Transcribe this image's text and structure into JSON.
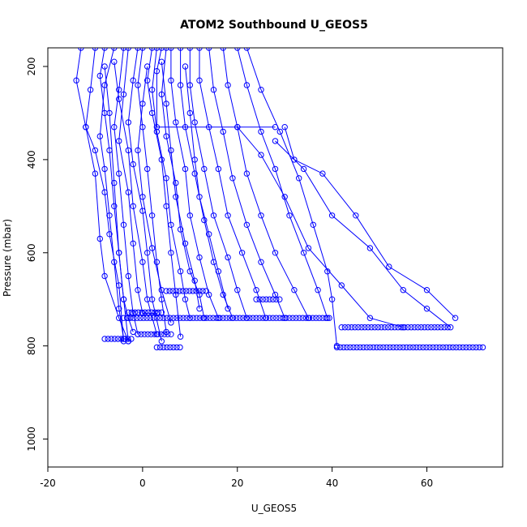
{
  "chart_data": {
    "type": "line",
    "title": "ATOM2 Southbound U_GEOS5",
    "xlabel": "U_GEOS5",
    "ylabel": "Pressure (mbar)",
    "xlim": [
      -20,
      76
    ],
    "ylim": [
      1060,
      160
    ],
    "y_reversed": true,
    "x_ticks": [
      -20,
      0,
      20,
      40,
      60
    ],
    "y_ticks": [
      200,
      400,
      600,
      800,
      1000
    ],
    "marker": "open-circle",
    "line_color": "#0000ff",
    "grid": false,
    "series": [
      {
        "values": [
          [
            -13,
            160
          ],
          [
            -14,
            230
          ],
          [
            -12,
            330
          ],
          [
            -10,
            430
          ],
          [
            -9,
            570
          ],
          [
            -8,
            650
          ],
          [
            -5,
            740
          ],
          [
            -3,
            790
          ]
        ]
      },
      {
        "values": [
          [
            -10,
            160
          ],
          [
            -11,
            250
          ],
          [
            -12,
            330
          ],
          [
            -10,
            380
          ],
          [
            -8,
            470
          ],
          [
            -7,
            560
          ],
          [
            -5,
            670
          ],
          [
            -4,
            790
          ]
        ]
      },
      {
        "values": [
          [
            -8,
            160
          ],
          [
            -9,
            220
          ],
          [
            -8,
            300
          ],
          [
            -7,
            380
          ],
          [
            -6,
            500
          ],
          [
            -5,
            600
          ],
          [
            -4,
            700
          ],
          [
            -3,
            790
          ]
        ]
      },
      {
        "values": [
          [
            -6,
            160
          ],
          [
            -8,
            240
          ],
          [
            -9,
            350
          ],
          [
            -8,
            420
          ],
          [
            -7,
            520
          ],
          [
            -6,
            620
          ],
          [
            -5,
            720
          ],
          [
            -4,
            785
          ]
        ]
      },
      {
        "values": [
          [
            -4,
            160
          ],
          [
            -5,
            250
          ],
          [
            -6,
            330
          ],
          [
            -5,
            430
          ],
          [
            -4,
            540
          ],
          [
            -3,
            650
          ],
          [
            -2,
            730
          ],
          [
            -1,
            775
          ]
        ]
      },
      {
        "values": [
          [
            -3,
            160
          ],
          [
            -4,
            260
          ],
          [
            -5,
            360
          ],
          [
            -3,
            470
          ],
          [
            -2,
            580
          ],
          [
            -1,
            680
          ],
          [
            0,
            730
          ],
          [
            3,
            730
          ]
        ]
      },
      {
        "values": [
          [
            -1,
            160
          ],
          [
            -2,
            230
          ],
          [
            -3,
            320
          ],
          [
            -2,
            410
          ],
          [
            0,
            510
          ],
          [
            1,
            600
          ],
          [
            2,
            700
          ],
          [
            4,
            790
          ]
        ]
      },
      {
        "values": [
          [
            0,
            160
          ],
          [
            -1,
            240
          ],
          [
            0,
            330
          ],
          [
            1,
            420
          ],
          [
            2,
            520
          ],
          [
            3,
            620
          ],
          [
            4,
            700
          ],
          [
            5,
            770
          ]
        ]
      },
      {
        "values": [
          [
            2,
            160
          ],
          [
            1,
            230
          ],
          [
            2,
            300
          ],
          [
            4,
            400
          ],
          [
            5,
            500
          ],
          [
            6,
            600
          ],
          [
            7,
            690
          ],
          [
            8,
            780
          ]
        ]
      },
      {
        "values": [
          [
            3,
            160
          ],
          [
            2,
            250
          ],
          [
            3,
            340
          ],
          [
            5,
            440
          ],
          [
            6,
            540
          ],
          [
            8,
            640
          ],
          [
            9,
            700
          ],
          [
            10,
            740
          ]
        ]
      },
      {
        "values": [
          [
            5,
            160
          ],
          [
            4,
            260
          ],
          [
            5,
            350
          ],
          [
            7,
            450
          ],
          [
            8,
            550
          ],
          [
            10,
            640
          ],
          [
            12,
            690
          ],
          [
            13,
            740
          ]
        ]
      },
      {
        "values": [
          [
            4,
            160
          ],
          [
            3,
            210
          ],
          [
            3,
            330
          ],
          [
            28,
            330
          ]
        ]
      },
      {
        "values": [
          [
            6,
            160
          ],
          [
            6,
            230
          ],
          [
            7,
            320
          ],
          [
            9,
            420
          ],
          [
            10,
            520
          ],
          [
            12,
            610
          ],
          [
            14,
            690
          ],
          [
            16,
            740
          ]
        ]
      },
      {
        "values": [
          [
            8,
            160
          ],
          [
            8,
            240
          ],
          [
            9,
            330
          ],
          [
            11,
            430
          ],
          [
            13,
            530
          ],
          [
            15,
            620
          ],
          [
            17,
            690
          ],
          [
            19,
            740
          ]
        ]
      },
      {
        "values": [
          [
            10,
            160
          ],
          [
            10,
            240
          ],
          [
            11,
            320
          ],
          [
            13,
            420
          ],
          [
            15,
            520
          ],
          [
            18,
            610
          ],
          [
            20,
            680
          ],
          [
            22,
            740
          ]
        ]
      },
      {
        "values": [
          [
            12,
            160
          ],
          [
            12,
            230
          ],
          [
            14,
            330
          ],
          [
            16,
            420
          ],
          [
            18,
            520
          ],
          [
            21,
            600
          ],
          [
            24,
            680
          ],
          [
            26,
            740
          ]
        ]
      },
      {
        "values": [
          [
            14,
            160
          ],
          [
            15,
            250
          ],
          [
            17,
            340
          ],
          [
            19,
            440
          ],
          [
            22,
            540
          ],
          [
            25,
            620
          ],
          [
            28,
            690
          ],
          [
            30,
            740
          ]
        ]
      },
      {
        "values": [
          [
            17,
            160
          ],
          [
            18,
            240
          ],
          [
            20,
            330
          ],
          [
            22,
            430
          ],
          [
            25,
            520
          ],
          [
            28,
            600
          ],
          [
            32,
            680
          ],
          [
            35,
            740
          ]
        ]
      },
      {
        "values": [
          [
            20,
            160
          ],
          [
            22,
            240
          ],
          [
            25,
            340
          ],
          [
            28,
            420
          ],
          [
            31,
            520
          ],
          [
            34,
            600
          ],
          [
            37,
            680
          ],
          [
            39,
            740
          ]
        ]
      },
      {
        "values": [
          [
            22,
            160
          ],
          [
            25,
            250
          ],
          [
            29,
            340
          ],
          [
            33,
            440
          ],
          [
            36,
            540
          ],
          [
            39,
            640
          ],
          [
            40,
            700
          ],
          [
            41,
            800
          ]
        ]
      },
      {
        "values": [
          [
            30,
            330
          ],
          [
            32,
            400
          ],
          [
            38,
            430
          ],
          [
            45,
            520
          ],
          [
            52,
            630
          ],
          [
            60,
            680
          ],
          [
            66,
            740
          ]
        ]
      },
      {
        "values": [
          [
            28,
            360
          ],
          [
            34,
            420
          ],
          [
            40,
            520
          ],
          [
            48,
            590
          ],
          [
            55,
            680
          ],
          [
            60,
            720
          ],
          [
            65,
            760
          ]
        ]
      },
      {
        "values": [
          [
            20,
            330
          ],
          [
            25,
            390
          ],
          [
            30,
            480
          ],
          [
            35,
            590
          ],
          [
            42,
            670
          ],
          [
            48,
            740
          ],
          [
            55,
            760
          ]
        ]
      },
      {
        "values": [
          [
            -8,
            200
          ],
          [
            -7,
            300
          ],
          [
            -6,
            450
          ],
          [
            -5,
            600
          ],
          [
            -4,
            700
          ],
          [
            -3,
            740
          ],
          [
            -2,
            770
          ]
        ]
      },
      {
        "values": [
          [
            -6,
            190
          ],
          [
            -5,
            270
          ],
          [
            -3,
            380
          ],
          [
            -2,
            500
          ],
          [
            0,
            620
          ],
          [
            1,
            700
          ],
          [
            3,
            775
          ]
        ]
      },
      {
        "values": [
          [
            1,
            200
          ],
          [
            0,
            280
          ],
          [
            -1,
            380
          ],
          [
            0,
            480
          ],
          [
            2,
            590
          ],
          [
            4,
            680
          ],
          [
            6,
            750
          ]
        ]
      },
      {
        "values": [
          [
            4,
            190
          ],
          [
            5,
            280
          ],
          [
            6,
            380
          ],
          [
            7,
            480
          ],
          [
            9,
            580
          ],
          [
            11,
            660
          ],
          [
            12,
            720
          ]
        ]
      },
      {
        "values": [
          [
            9,
            200
          ],
          [
            10,
            300
          ],
          [
            11,
            400
          ],
          [
            12,
            480
          ],
          [
            14,
            560
          ],
          [
            16,
            640
          ],
          [
            18,
            720
          ]
        ]
      }
    ],
    "dense_levels": [
      {
        "p": 728,
        "x_from": -3,
        "x_to": 4
      },
      {
        "p": 740,
        "x_from": -4,
        "x_to": 40
      },
      {
        "p": 682,
        "x_from": 5,
        "x_to": 14
      },
      {
        "p": 700,
        "x_from": 24,
        "x_to": 29
      },
      {
        "p": 760,
        "x_from": 42,
        "x_to": 65
      },
      {
        "p": 803,
        "x_from": 3,
        "x_to": 8
      },
      {
        "p": 803,
        "x_from": 41,
        "x_to": 72
      },
      {
        "p": 785,
        "x_from": -8,
        "x_to": -2
      },
      {
        "p": 775,
        "x_from": -1,
        "x_to": 6
      }
    ]
  }
}
